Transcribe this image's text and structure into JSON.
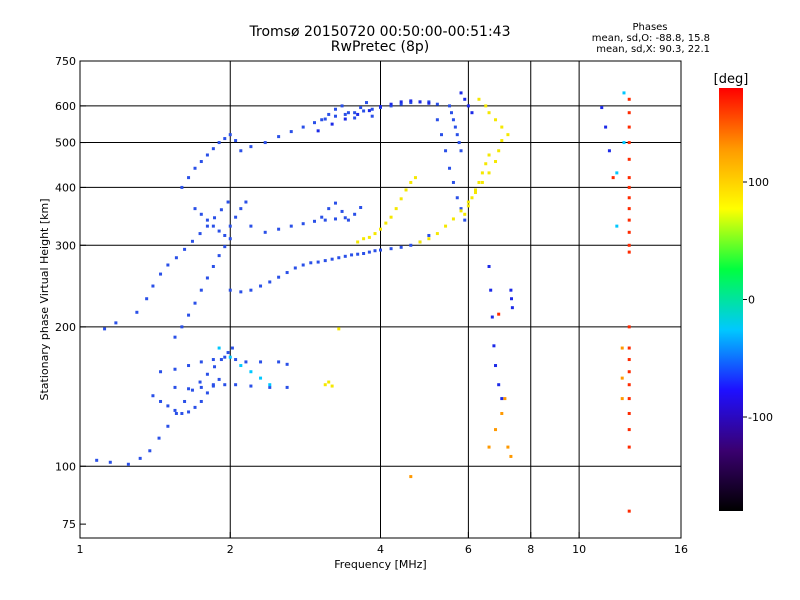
{
  "header": {
    "title_line1": "Tromsø 20150720 00:50:00-00:51:43",
    "title_line2": "RwPretec (8p)"
  },
  "stats": {
    "heading": "Phases",
    "line1": "mean, sd,O:  -88.8, 15.8",
    "line2": "mean, sd,X:  90.3, 22.1"
  },
  "chart_data": {
    "type": "scatter",
    "xlabel": "Frequency [MHz]",
    "ylabel": "Stationary phase Virtual Height [km]",
    "x_scale": "log",
    "y_scale": "log",
    "xlim": [
      1,
      16
    ],
    "ylim": [
      70,
      750
    ],
    "x_ticks": [
      1,
      2,
      4,
      6,
      8,
      10,
      16
    ],
    "x_tick_labels": [
      "1",
      "2",
      "4",
      "6",
      "8",
      "10",
      "16"
    ],
    "x_gridlines": [
      2,
      4,
      6,
      8,
      10
    ],
    "y_ticks": [
      75,
      100,
      200,
      300,
      400,
      500,
      600,
      750
    ],
    "y_tick_labels": [
      "75",
      "100",
      "200",
      "300",
      "400",
      "500",
      "600",
      "750"
    ],
    "y_gridlines": [
      100,
      200,
      300,
      400,
      500,
      600
    ],
    "grid": true,
    "colorbar": {
      "label": "[deg]",
      "range": [
        -180,
        180
      ],
      "ticks": [
        100,
        0,
        -100
      ],
      "tick_labels": [
        "100",
        "0",
        "-100"
      ],
      "colors": [
        "#000000",
        "#3a0070",
        "#1e10ff",
        "#00c8ff",
        "#00ff40",
        "#ffff00",
        "#ff9900",
        "#ff0000"
      ]
    },
    "series": [
      {
        "color": "#2a50e8",
        "points": [
          [
            1.08,
            103
          ],
          [
            1.15,
            102
          ],
          [
            1.25,
            101
          ],
          [
            1.32,
            104
          ],
          [
            1.38,
            108
          ],
          [
            1.44,
            115
          ],
          [
            1.5,
            122
          ],
          [
            1.56,
            130
          ],
          [
            1.62,
            138
          ],
          [
            1.68,
            146
          ],
          [
            1.74,
            152
          ],
          [
            1.8,
            158
          ],
          [
            1.86,
            164
          ],
          [
            1.92,
            170
          ],
          [
            1.98,
            176
          ],
          [
            2.02,
            180
          ],
          [
            1.4,
            142
          ],
          [
            1.45,
            138
          ],
          [
            1.5,
            135
          ],
          [
            1.55,
            132
          ],
          [
            1.6,
            130
          ],
          [
            1.65,
            131
          ],
          [
            1.7,
            134
          ],
          [
            1.75,
            138
          ],
          [
            1.8,
            144
          ],
          [
            1.85,
            150
          ],
          [
            1.9,
            154
          ],
          [
            1.45,
            160
          ],
          [
            1.55,
            162
          ],
          [
            1.65,
            165
          ],
          [
            1.75,
            168
          ],
          [
            1.85,
            170
          ],
          [
            1.95,
            172
          ],
          [
            2.05,
            170
          ],
          [
            2.15,
            168
          ],
          [
            2.3,
            168
          ],
          [
            2.5,
            168
          ],
          [
            2.6,
            166
          ],
          [
            1.55,
            148
          ],
          [
            1.65,
            147
          ],
          [
            1.75,
            148
          ],
          [
            1.85,
            149
          ],
          [
            1.95,
            150
          ],
          [
            2.05,
            150
          ],
          [
            2.2,
            149
          ],
          [
            2.4,
            148
          ],
          [
            2.6,
            148
          ],
          [
            1.12,
            198
          ],
          [
            1.18,
            204
          ],
          [
            1.3,
            215
          ],
          [
            1.36,
            230
          ],
          [
            1.4,
            245
          ],
          [
            1.45,
            260
          ],
          [
            1.5,
            272
          ],
          [
            1.56,
            282
          ],
          [
            1.62,
            294
          ],
          [
            1.68,
            306
          ],
          [
            1.74,
            318
          ],
          [
            1.8,
            330
          ],
          [
            1.86,
            344
          ],
          [
            1.92,
            358
          ],
          [
            1.98,
            372
          ],
          [
            1.55,
            190
          ],
          [
            1.6,
            200
          ],
          [
            1.65,
            212
          ],
          [
            1.7,
            225
          ],
          [
            1.75,
            240
          ],
          [
            1.8,
            255
          ],
          [
            1.85,
            270
          ],
          [
            1.9,
            285
          ],
          [
            1.95,
            298
          ],
          [
            2.0,
            310
          ],
          [
            1.6,
            400
          ],
          [
            1.65,
            420
          ],
          [
            1.7,
            440
          ],
          [
            1.75,
            455
          ],
          [
            1.8,
            470
          ],
          [
            1.85,
            485
          ],
          [
            1.9,
            500
          ],
          [
            1.95,
            510
          ],
          [
            2.0,
            520
          ],
          [
            2.05,
            505
          ],
          [
            2.1,
            480
          ],
          [
            1.7,
            360
          ],
          [
            1.75,
            350
          ],
          [
            1.8,
            340
          ],
          [
            1.85,
            330
          ],
          [
            1.9,
            322
          ],
          [
            1.95,
            315
          ],
          [
            2.0,
            330
          ],
          [
            2.05,
            345
          ],
          [
            2.1,
            360
          ],
          [
            2.15,
            372
          ],
          [
            2.0,
            240
          ],
          [
            2.1,
            238
          ],
          [
            2.2,
            240
          ],
          [
            2.3,
            245
          ],
          [
            2.4,
            250
          ],
          [
            2.5,
            256
          ],
          [
            2.6,
            262
          ],
          [
            2.7,
            268
          ],
          [
            2.8,
            272
          ],
          [
            2.9,
            275
          ],
          [
            3.0,
            276
          ],
          [
            3.1,
            278
          ],
          [
            3.2,
            280
          ],
          [
            3.3,
            282
          ],
          [
            3.4,
            284
          ],
          [
            3.5,
            286
          ],
          [
            3.6,
            287
          ],
          [
            3.7,
            288
          ],
          [
            3.8,
            290
          ],
          [
            3.9,
            292
          ],
          [
            4.0,
            293
          ],
          [
            4.2,
            295
          ],
          [
            4.4,
            297
          ],
          [
            4.6,
            300
          ],
          [
            4.8,
            305
          ],
          [
            5.0,
            315
          ],
          [
            2.2,
            330
          ],
          [
            2.35,
            320
          ],
          [
            2.5,
            325
          ],
          [
            2.65,
            330
          ],
          [
            2.8,
            334
          ],
          [
            2.95,
            338
          ],
          [
            3.1,
            340
          ],
          [
            3.25,
            342
          ],
          [
            3.4,
            344
          ],
          [
            2.2,
            490
          ],
          [
            2.35,
            500
          ],
          [
            2.5,
            515
          ],
          [
            2.65,
            528
          ],
          [
            2.8,
            540
          ],
          [
            2.95,
            552
          ],
          [
            3.1,
            562
          ],
          [
            3.25,
            570
          ],
          [
            3.4,
            575
          ],
          [
            3.55,
            580
          ],
          [
            3.7,
            585
          ],
          [
            3.85,
            590
          ],
          [
            4.0,
            595
          ],
          [
            4.2,
            600
          ],
          [
            4.4,
            605
          ],
          [
            4.6,
            610
          ],
          [
            4.8,
            612
          ],
          [
            5.0,
            612
          ],
          [
            5.2,
            605
          ],
          [
            3.05,
            560
          ],
          [
            3.15,
            575
          ],
          [
            3.25,
            590
          ],
          [
            3.35,
            600
          ],
          [
            3.45,
            580
          ],
          [
            3.55,
            565
          ],
          [
            3.65,
            595
          ],
          [
            3.75,
            610
          ],
          [
            3.85,
            570
          ],
          [
            3.05,
            345
          ],
          [
            3.15,
            360
          ],
          [
            3.25,
            370
          ],
          [
            3.35,
            355
          ],
          [
            3.45,
            340
          ],
          [
            3.55,
            350
          ],
          [
            3.65,
            362
          ],
          [
            5.2,
            560
          ],
          [
            5.3,
            520
          ],
          [
            5.4,
            480
          ],
          [
            5.5,
            440
          ],
          [
            5.6,
            410
          ],
          [
            5.7,
            380
          ],
          [
            5.8,
            360
          ],
          [
            5.9,
            340
          ],
          [
            5.5,
            600
          ],
          [
            5.55,
            580
          ],
          [
            5.6,
            560
          ],
          [
            5.65,
            540
          ],
          [
            5.7,
            520
          ],
          [
            5.75,
            500
          ],
          [
            5.8,
            480
          ]
        ]
      },
      {
        "color": "#f5e800",
        "points": [
          [
            3.6,
            305
          ],
          [
            3.7,
            310
          ],
          [
            3.8,
            312
          ],
          [
            3.9,
            318
          ],
          [
            4.0,
            325
          ],
          [
            4.1,
            335
          ],
          [
            4.2,
            345
          ],
          [
            4.3,
            360
          ],
          [
            4.4,
            378
          ],
          [
            4.5,
            395
          ],
          [
            4.6,
            410
          ],
          [
            4.7,
            420
          ],
          [
            4.8,
            305
          ],
          [
            5.0,
            310
          ],
          [
            5.2,
            318
          ],
          [
            5.4,
            330
          ],
          [
            5.6,
            342
          ],
          [
            5.8,
            356
          ],
          [
            6.0,
            372
          ],
          [
            6.2,
            390
          ],
          [
            6.4,
            410
          ],
          [
            6.6,
            430
          ],
          [
            6.8,
            455
          ],
          [
            6.9,
            480
          ],
          [
            7.0,
            505
          ],
          [
            5.9,
            350
          ],
          [
            6.0,
            365
          ],
          [
            6.1,
            380
          ],
          [
            6.2,
            395
          ],
          [
            6.3,
            410
          ],
          [
            6.4,
            430
          ],
          [
            6.5,
            450
          ],
          [
            6.6,
            470
          ],
          [
            6.3,
            620
          ],
          [
            6.5,
            600
          ],
          [
            6.6,
            580
          ],
          [
            6.8,
            560
          ],
          [
            7.0,
            540
          ],
          [
            7.2,
            520
          ],
          [
            3.1,
            150
          ],
          [
            3.15,
            152
          ],
          [
            3.2,
            149
          ],
          [
            3.3,
            198
          ]
        ]
      },
      {
        "color": "#1c2ae8",
        "points": [
          [
            3.0,
            530
          ],
          [
            3.2,
            548
          ],
          [
            3.4,
            562
          ],
          [
            3.6,
            575
          ],
          [
            3.8,
            586
          ],
          [
            4.0,
            598
          ],
          [
            4.2,
            605
          ],
          [
            4.4,
            612
          ],
          [
            4.6,
            615
          ],
          [
            4.8,
            612
          ],
          [
            5.0,
            608
          ],
          [
            5.8,
            640
          ],
          [
            5.9,
            620
          ],
          [
            6.0,
            600
          ],
          [
            6.1,
            580
          ],
          [
            6.6,
            270
          ],
          [
            6.65,
            240
          ],
          [
            6.7,
            210
          ],
          [
            6.75,
            182
          ],
          [
            6.8,
            165
          ],
          [
            6.9,
            150
          ],
          [
            7.0,
            140
          ],
          [
            7.3,
            240
          ],
          [
            7.32,
            230
          ],
          [
            7.35,
            220
          ],
          [
            11.1,
            595
          ],
          [
            11.3,
            540
          ],
          [
            11.5,
            480
          ]
        ]
      },
      {
        "color": "#ff2a00",
        "points": [
          [
            12.6,
            620
          ],
          [
            12.6,
            580
          ],
          [
            12.6,
            540
          ],
          [
            12.6,
            500
          ],
          [
            12.6,
            460
          ],
          [
            12.6,
            420
          ],
          [
            12.6,
            400
          ],
          [
            12.6,
            380
          ],
          [
            12.6,
            360
          ],
          [
            12.6,
            340
          ],
          [
            12.6,
            320
          ],
          [
            12.6,
            300
          ],
          [
            12.6,
            290
          ],
          [
            12.6,
            200
          ],
          [
            12.6,
            180
          ],
          [
            12.6,
            170
          ],
          [
            12.6,
            160
          ],
          [
            12.6,
            150
          ],
          [
            12.6,
            140
          ],
          [
            12.6,
            130
          ],
          [
            12.6,
            120
          ],
          [
            12.6,
            110
          ],
          [
            12.6,
            80
          ],
          [
            11.7,
            420
          ],
          [
            6.9,
            213
          ]
        ]
      },
      {
        "color": "#ff9900",
        "points": [
          [
            6.6,
            110
          ],
          [
            6.8,
            120
          ],
          [
            7.0,
            130
          ],
          [
            7.1,
            140
          ],
          [
            7.2,
            110
          ],
          [
            7.3,
            105
          ],
          [
            4.6,
            95
          ],
          [
            12.2,
            140
          ],
          [
            12.2,
            155
          ],
          [
            12.2,
            180
          ]
        ]
      },
      {
        "color": "#00c8ff",
        "points": [
          [
            1.9,
            180
          ],
          [
            2.0,
            172
          ],
          [
            2.1,
            165
          ],
          [
            2.2,
            160
          ],
          [
            2.3,
            155
          ],
          [
            2.4,
            150
          ],
          [
            12.3,
            640
          ],
          [
            12.3,
            500
          ],
          [
            11.9,
            430
          ],
          [
            11.9,
            330
          ]
        ]
      }
    ]
  }
}
